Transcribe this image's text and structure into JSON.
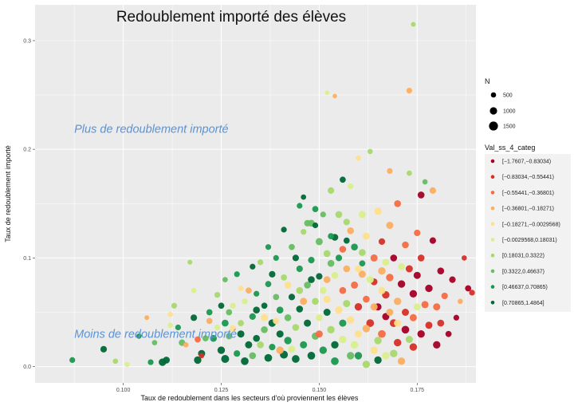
{
  "chart_data": {
    "type": "scatter",
    "title": "Redoublement importé des élèves",
    "xlabel": "Taux de redoublement dans les secteurs d'où proviennent les élèves",
    "ylabel": "Taux de redoublement importé",
    "xlim": [
      0.0775,
      0.19
    ],
    "ylim": [
      -0.015,
      0.333
    ],
    "x_ticks": [
      0.1,
      0.125,
      0.15,
      0.175
    ],
    "x_tick_labels": [
      "0.100",
      "0.125",
      "0.150",
      "0.175"
    ],
    "y_ticks": [
      0.0,
      0.1,
      0.2,
      0.3
    ],
    "y_tick_labels": [
      "0.0",
      "0.1",
      "0.2",
      "0.3"
    ],
    "grid": true,
    "annotations": [
      {
        "text": "Plus de redoublement importé",
        "x": 0.0875,
        "y": 0.219
      },
      {
        "text": "Moins de redoublement importé",
        "x": 0.0875,
        "y": 0.03
      }
    ],
    "size_legend": {
      "title": "N",
      "entries": [
        {
          "label": "500",
          "value": 500
        },
        {
          "label": "1000",
          "value": 1000
        },
        {
          "label": "1500",
          "value": 1500
        }
      ]
    },
    "color_legend": {
      "title": "Val_ss_4_categ",
      "placement": "right",
      "categories": [
        {
          "label": "[−1.7607,−0.83034)",
          "color": "#a50026"
        },
        {
          "label": "[−0.83034,−0.55441)",
          "color": "#d73027"
        },
        {
          "label": "[−0.55441,−0.36801)",
          "color": "#f46d43"
        },
        {
          "label": "[−0.36801,−0.18271)",
          "color": "#fdae61"
        },
        {
          "label": "[−0.18271,−0.0029568)",
          "color": "#fee08b"
        },
        {
          "label": "[−0.0029568,0.18031)",
          "color": "#d9ef8b"
        },
        {
          "label": "[0.18031,0.3322)",
          "color": "#a6d96a"
        },
        {
          "label": "[0.3322,0.46637)",
          "color": "#66bd63"
        },
        {
          "label": "[0.46637,0.70865)",
          "color": "#1a9850"
        },
        {
          "label": "[0.70865,1.4864]",
          "color": "#006837"
        }
      ]
    },
    "points": [
      [
        0.174,
        0.315,
        6,
        200
      ],
      [
        0.173,
        0.254,
        3,
        400
      ],
      [
        0.152,
        0.252,
        5,
        150
      ],
      [
        0.154,
        0.249,
        3,
        150
      ],
      [
        0.087,
        0.006,
        8,
        400
      ],
      [
        0.095,
        0.016,
        9,
        600
      ],
      [
        0.098,
        0.005,
        6,
        300
      ],
      [
        0.101,
        0.002,
        5,
        300
      ],
      [
        0.104,
        0.028,
        8,
        300
      ],
      [
        0.106,
        0.045,
        3,
        200
      ],
      [
        0.107,
        0.004,
        8,
        400
      ],
      [
        0.108,
        0.022,
        7,
        300
      ],
      [
        0.11,
        0.004,
        9,
        900
      ],
      [
        0.111,
        0.006,
        9,
        700
      ],
      [
        0.112,
        0.038,
        5,
        300
      ],
      [
        0.113,
        0.056,
        6,
        400
      ],
      [
        0.114,
        0.036,
        8,
        400
      ],
      [
        0.115,
        0.022,
        7,
        600
      ],
      [
        0.116,
        0.02,
        3,
        300
      ],
      [
        0.117,
        0.096,
        6,
        200
      ],
      [
        0.118,
        0.045,
        9,
        600
      ],
      [
        0.119,
        0.006,
        9,
        900
      ],
      [
        0.12,
        0.012,
        9,
        800
      ],
      [
        0.121,
        0.026,
        7,
        500
      ],
      [
        0.122,
        0.05,
        8,
        500
      ],
      [
        0.123,
        0.026,
        8,
        700
      ],
      [
        0.124,
        0.036,
        5,
        400
      ],
      [
        0.125,
        0.015,
        9,
        900
      ],
      [
        0.126,
        0.007,
        9,
        1100
      ],
      [
        0.126,
        0.08,
        7,
        300
      ],
      [
        0.127,
        0.028,
        7,
        600
      ],
      [
        0.128,
        0.056,
        5,
        400
      ],
      [
        0.129,
        0.012,
        8,
        600
      ],
      [
        0.13,
        0.04,
        6,
        500
      ],
      [
        0.13,
        0.072,
        4,
        300
      ],
      [
        0.131,
        0.005,
        9,
        1000
      ],
      [
        0.132,
        0.02,
        9,
        800
      ],
      [
        0.133,
        0.046,
        8,
        600
      ],
      [
        0.133,
        0.01,
        7,
        700
      ],
      [
        0.134,
        0.067,
        8,
        400
      ],
      [
        0.134,
        0.026,
        9,
        700
      ],
      [
        0.135,
        0.096,
        6,
        400
      ],
      [
        0.136,
        0.056,
        9,
        500
      ],
      [
        0.136,
        0.034,
        7,
        700
      ],
      [
        0.137,
        0.008,
        9,
        1000
      ],
      [
        0.137,
        0.076,
        8,
        500
      ],
      [
        0.138,
        0.04,
        9,
        900
      ],
      [
        0.138,
        0.018,
        8,
        600
      ],
      [
        0.139,
        0.064,
        7,
        500
      ],
      [
        0.139,
        0.1,
        8,
        400
      ],
      [
        0.14,
        0.03,
        9,
        800
      ],
      [
        0.14,
        0.052,
        8,
        700
      ],
      [
        0.141,
        0.011,
        9,
        1100
      ],
      [
        0.141,
        0.082,
        6,
        500
      ],
      [
        0.142,
        0.045,
        7,
        700
      ],
      [
        0.142,
        0.024,
        8,
        900
      ],
      [
        0.143,
        0.064,
        9,
        600
      ],
      [
        0.143,
        0.11,
        7,
        500
      ],
      [
        0.144,
        0.036,
        6,
        700
      ],
      [
        0.144,
        0.007,
        9,
        1000
      ],
      [
        0.145,
        0.09,
        8,
        600
      ],
      [
        0.145,
        0.053,
        9,
        700
      ],
      [
        0.146,
        0.02,
        8,
        800
      ],
      [
        0.146,
        0.124,
        6,
        400
      ],
      [
        0.146,
        0.156,
        9,
        300
      ],
      [
        0.147,
        0.075,
        7,
        700
      ],
      [
        0.147,
        0.04,
        9,
        800
      ],
      [
        0.148,
        0.01,
        9,
        1000
      ],
      [
        0.148,
        0.132,
        7,
        700
      ],
      [
        0.148,
        0.098,
        8,
        600
      ],
      [
        0.149,
        0.06,
        6,
        700
      ],
      [
        0.149,
        0.028,
        7,
        800
      ],
      [
        0.15,
        0.115,
        7,
        800
      ],
      [
        0.15,
        0.083,
        9,
        600
      ],
      [
        0.15,
        0.045,
        5,
        700
      ],
      [
        0.151,
        0.015,
        8,
        900
      ],
      [
        0.151,
        0.14,
        7,
        400
      ],
      [
        0.152,
        0.104,
        6,
        700
      ],
      [
        0.152,
        0.062,
        4,
        800
      ],
      [
        0.153,
        0.034,
        6,
        900
      ],
      [
        0.153,
        0.162,
        6,
        600
      ],
      [
        0.154,
        0.119,
        9,
        700
      ],
      [
        0.154,
        0.084,
        5,
        700
      ],
      [
        0.154,
        0.005,
        8,
        1000
      ],
      [
        0.155,
        0.052,
        4,
        900
      ],
      [
        0.155,
        0.1,
        8,
        600
      ],
      [
        0.156,
        0.07,
        2,
        700
      ],
      [
        0.156,
        0.025,
        5,
        900
      ],
      [
        0.156,
        0.172,
        9,
        500
      ],
      [
        0.157,
        0.133,
        6,
        600
      ],
      [
        0.157,
        0.09,
        3,
        700
      ],
      [
        0.158,
        0.043,
        4,
        900
      ],
      [
        0.158,
        0.01,
        7,
        900
      ],
      [
        0.158,
        0.166,
        5,
        400
      ],
      [
        0.159,
        0.075,
        2,
        800
      ],
      [
        0.159,
        0.11,
        8,
        700
      ],
      [
        0.16,
        0.055,
        1,
        900
      ],
      [
        0.16,
        0.192,
        4,
        300
      ],
      [
        0.16,
        0.03,
        4,
        800
      ],
      [
        0.161,
        0.14,
        5,
        800
      ],
      [
        0.161,
        0.085,
        3,
        800
      ],
      [
        0.162,
        0.002,
        6,
        900
      ],
      [
        0.162,
        0.062,
        2,
        700
      ],
      [
        0.162,
        0.12,
        4,
        700
      ],
      [
        0.163,
        0.198,
        6,
        300
      ],
      [
        0.163,
        0.04,
        1,
        1000
      ],
      [
        0.164,
        0.1,
        2,
        800
      ],
      [
        0.164,
        0.078,
        1,
        700
      ],
      [
        0.164,
        0.015,
        4,
        900
      ],
      [
        0.165,
        0.055,
        0,
        800
      ],
      [
        0.165,
        0.143,
        4,
        900
      ],
      [
        0.166,
        0.03,
        2,
        1000
      ],
      [
        0.166,
        0.088,
        3,
        900
      ],
      [
        0.166,
        0.115,
        1,
        600
      ],
      [
        0.167,
        0.066,
        1,
        900
      ],
      [
        0.167,
        0.01,
        5,
        900
      ],
      [
        0.167,
        0.046,
        0,
        800
      ],
      [
        0.168,
        0.13,
        3,
        800
      ],
      [
        0.168,
        0.082,
        2,
        900
      ],
      [
        0.168,
        0.18,
        3,
        400
      ],
      [
        0.169,
        0.04,
        1,
        1000
      ],
      [
        0.169,
        0.1,
        0,
        700
      ],
      [
        0.17,
        0.06,
        3,
        900
      ],
      [
        0.17,
        0.022,
        1,
        900
      ],
      [
        0.17,
        0.15,
        2,
        700
      ],
      [
        0.171,
        0.076,
        0,
        900
      ],
      [
        0.171,
        0.005,
        3,
        900
      ],
      [
        0.172,
        0.05,
        1,
        800
      ],
      [
        0.172,
        0.112,
        2,
        700
      ],
      [
        0.172,
        0.034,
        0,
        1000
      ],
      [
        0.173,
        0.09,
        1,
        800
      ],
      [
        0.173,
        0.178,
        6,
        300
      ],
      [
        0.174,
        0.067,
        0,
        900
      ],
      [
        0.174,
        0.045,
        2,
        800
      ],
      [
        0.174,
        0.018,
        1,
        900
      ],
      [
        0.175,
        0.123,
        2,
        600
      ],
      [
        0.175,
        0.084,
        0,
        800
      ],
      [
        0.176,
        0.03,
        0,
        900
      ],
      [
        0.176,
        0.1,
        1,
        700
      ],
      [
        0.176,
        0.158,
        0,
        700
      ],
      [
        0.177,
        0.057,
        2,
        800
      ],
      [
        0.177,
        0.17,
        7,
        300
      ],
      [
        0.178,
        0.072,
        0,
        900
      ],
      [
        0.178,
        0.038,
        1,
        800
      ],
      [
        0.179,
        0.162,
        3,
        600
      ],
      [
        0.179,
        0.116,
        0,
        600
      ],
      [
        0.18,
        0.055,
        2,
        800
      ],
      [
        0.18,
        0.02,
        0,
        900
      ],
      [
        0.181,
        0.088,
        0,
        700
      ],
      [
        0.181,
        0.04,
        1,
        700
      ],
      [
        0.182,
        0.065,
        2,
        600
      ],
      [
        0.183,
        0.03,
        0,
        500
      ],
      [
        0.184,
        0.08,
        0,
        600
      ],
      [
        0.185,
        0.045,
        0,
        400
      ],
      [
        0.186,
        0.06,
        3,
        300
      ],
      [
        0.187,
        0.1,
        1,
        300
      ],
      [
        0.188,
        0.072,
        0,
        500
      ],
      [
        0.189,
        0.068,
        1,
        400
      ],
      [
        0.112,
        0.048,
        4,
        300
      ],
      [
        0.118,
        0.07,
        5,
        300
      ],
      [
        0.124,
        0.066,
        6,
        400
      ],
      [
        0.127,
        0.05,
        7,
        500
      ],
      [
        0.131,
        0.06,
        5,
        400
      ],
      [
        0.135,
        0.02,
        6,
        700
      ],
      [
        0.139,
        0.042,
        4,
        600
      ],
      [
        0.143,
        0.016,
        5,
        800
      ],
      [
        0.145,
        0.07,
        6,
        700
      ],
      [
        0.147,
        0.132,
        7,
        600
      ],
      [
        0.149,
        0.145,
        8,
        500
      ],
      [
        0.151,
        0.07,
        5,
        700
      ],
      [
        0.153,
        0.095,
        7,
        700
      ],
      [
        0.155,
        0.14,
        6,
        700
      ],
      [
        0.157,
        0.058,
        6,
        800
      ],
      [
        0.159,
        0.02,
        5,
        900
      ],
      [
        0.161,
        0.105,
        6,
        700
      ],
      [
        0.163,
        0.08,
        5,
        800
      ],
      [
        0.165,
        0.024,
        6,
        900
      ],
      [
        0.167,
        0.096,
        5,
        700
      ],
      [
        0.169,
        0.012,
        6,
        900
      ],
      [
        0.171,
        0.092,
        5,
        700
      ],
      [
        0.173,
        0.025,
        6,
        800
      ],
      [
        0.175,
        0.055,
        5,
        700
      ],
      [
        0.158,
        0.125,
        3,
        700
      ],
      [
        0.152,
        0.08,
        3,
        700
      ],
      [
        0.16,
        0.09,
        4,
        700
      ],
      [
        0.164,
        0.055,
        3,
        800
      ],
      [
        0.166,
        0.07,
        4,
        800
      ],
      [
        0.168,
        0.05,
        3,
        800
      ],
      [
        0.17,
        0.04,
        4,
        800
      ],
      [
        0.162,
        0.035,
        3,
        900
      ],
      [
        0.156,
        0.108,
        2,
        700
      ],
      [
        0.15,
        0.03,
        2,
        800
      ],
      [
        0.146,
        0.06,
        3,
        800
      ],
      [
        0.142,
        0.075,
        4,
        700
      ],
      [
        0.14,
        0.015,
        3,
        900
      ],
      [
        0.136,
        0.045,
        4,
        800
      ],
      [
        0.132,
        0.07,
        3,
        500
      ],
      [
        0.128,
        0.035,
        4,
        600
      ],
      [
        0.122,
        0.042,
        3,
        500
      ],
      [
        0.119,
        0.025,
        2,
        500
      ],
      [
        0.12,
        0.01,
        1,
        300
      ],
      [
        0.125,
        0.056,
        9,
        500
      ],
      [
        0.129,
        0.085,
        8,
        400
      ],
      [
        0.133,
        0.092,
        9,
        400
      ],
      [
        0.137,
        0.11,
        8,
        400
      ],
      [
        0.141,
        0.126,
        9,
        400
      ],
      [
        0.145,
        0.148,
        8,
        400
      ],
      [
        0.149,
        0.13,
        9,
        400
      ],
      [
        0.153,
        0.12,
        8,
        500
      ],
      [
        0.157,
        0.116,
        9,
        500
      ],
      [
        0.161,
        0.095,
        8,
        500
      ],
      [
        0.165,
        0.006,
        9,
        900
      ],
      [
        0.144,
        0.1,
        9,
        600
      ],
      [
        0.138,
        0.085,
        9,
        600
      ],
      [
        0.134,
        0.052,
        9,
        700
      ],
      [
        0.13,
        0.03,
        9,
        800
      ],
      [
        0.126,
        0.04,
        8,
        700
      ],
      [
        0.148,
        0.08,
        9,
        700
      ],
      [
        0.152,
        0.05,
        9,
        800
      ],
      [
        0.156,
        0.04,
        8,
        800
      ],
      [
        0.154,
        0.02,
        9,
        900
      ],
      [
        0.16,
        0.01,
        8,
        900
      ]
    ]
  }
}
